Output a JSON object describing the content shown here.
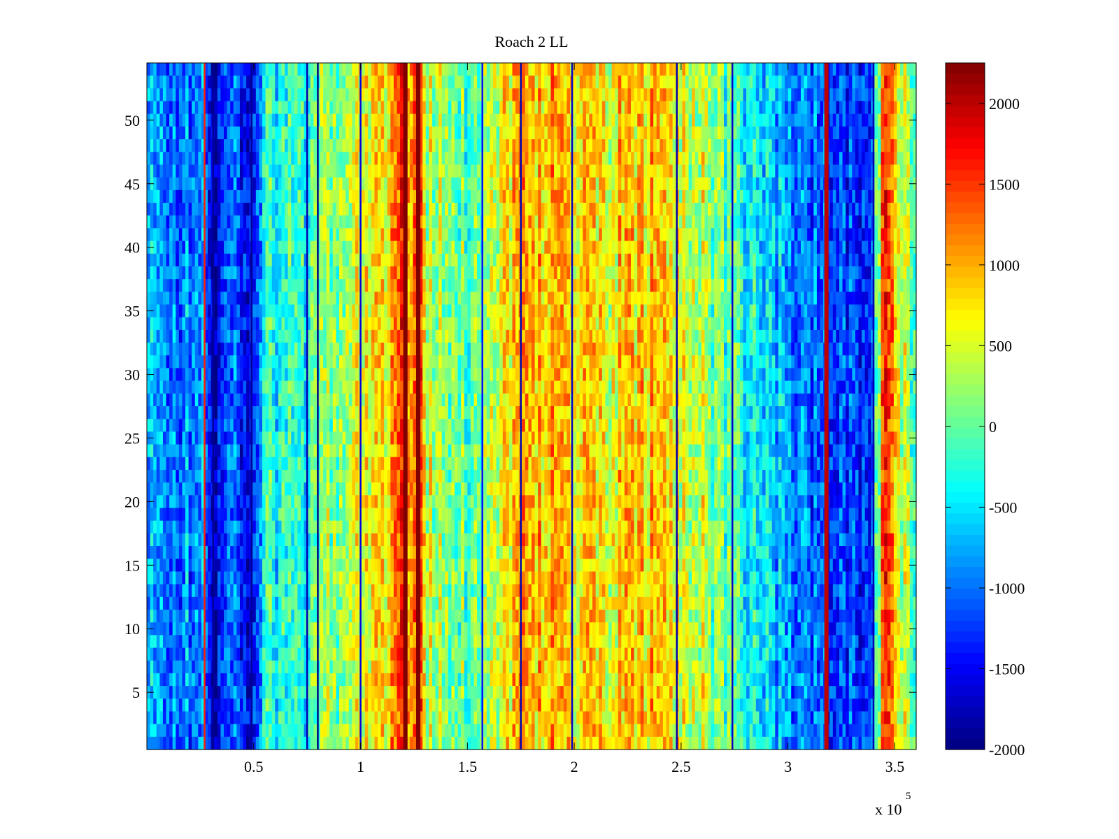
{
  "chart_data": {
    "type": "heatmap",
    "title": "Roach 2 LL",
    "xlabel": "",
    "ylabel": "",
    "x_exponent_label": "x 10",
    "x_exponent_sup": "5",
    "xlim": [
      0,
      3.6
    ],
    "ylim": [
      0.5,
      54.5
    ],
    "x_ticks": [
      0.5,
      1,
      1.5,
      2,
      2.5,
      3,
      3.5
    ],
    "x_tick_labels": [
      "0.5",
      "1",
      "1.5",
      "2",
      "2.5",
      "3",
      "3.5"
    ],
    "y_ticks": [
      5,
      10,
      15,
      20,
      25,
      30,
      35,
      40,
      45,
      50
    ],
    "y_tick_labels": [
      "5",
      "10",
      "15",
      "20",
      "25",
      "30",
      "35",
      "40",
      "45",
      "50"
    ],
    "rows": 54,
    "colorbar": {
      "colormap": "jet",
      "clim": [
        -2000,
        2250
      ],
      "ticks": [
        2000,
        1500,
        1000,
        500,
        0,
        -500,
        -1000,
        -1500,
        -2000
      ],
      "tick_labels": [
        "2000",
        "1500",
        "1000",
        "500",
        "0",
        "-500",
        "-1000",
        "-1500",
        "-2000"
      ]
    },
    "column_profile": {
      "x": [
        0.0,
        0.1,
        0.2,
        0.28,
        0.3,
        0.33,
        0.38,
        0.45,
        0.48,
        0.5,
        0.55,
        0.65,
        0.75,
        0.8,
        0.85,
        0.95,
        1.0,
        1.05,
        1.15,
        1.2,
        1.23,
        1.27,
        1.3,
        1.4,
        1.5,
        1.58,
        1.65,
        1.75,
        1.85,
        1.95,
        2.05,
        2.15,
        2.25,
        2.35,
        2.45,
        2.5,
        2.6,
        2.7,
        2.8,
        2.9,
        3.0,
        3.1,
        3.18,
        3.25,
        3.3,
        3.35,
        3.4,
        3.45,
        3.48,
        3.52,
        3.6
      ],
      "values": [
        -800,
        -900,
        -950,
        -1000,
        -1600,
        -1550,
        -1100,
        -1300,
        -1500,
        -1100,
        -400,
        -300,
        -300,
        -100,
        200,
        400,
        600,
        700,
        900,
        2100,
        900,
        2000,
        500,
        100,
        0,
        200,
        600,
        900,
        1000,
        900,
        700,
        600,
        800,
        850,
        750,
        600,
        400,
        -100,
        -400,
        -600,
        -800,
        -1000,
        -1200,
        -1300,
        -1300,
        -1200,
        -900,
        1500,
        1200,
        400,
        100
      ]
    },
    "dark_stripes": [
      {
        "x": 0.27,
        "value": 1600
      },
      {
        "x": 0.31,
        "value": -1900
      },
      {
        "x": 0.49,
        "value": -1900
      },
      {
        "x": 0.75,
        "value": -1800
      },
      {
        "x": 0.8,
        "value": -2000
      },
      {
        "x": 1.0,
        "value": -1600
      },
      {
        "x": 1.21,
        "value": 2250
      },
      {
        "x": 1.27,
        "value": 2250
      },
      {
        "x": 1.57,
        "value": -1400
      },
      {
        "x": 1.75,
        "value": -1800
      },
      {
        "x": 1.99,
        "value": -1700
      },
      {
        "x": 2.48,
        "value": -1800
      },
      {
        "x": 2.74,
        "value": -1700
      },
      {
        "x": 3.18,
        "value": 2000
      },
      {
        "x": 3.4,
        "value": -1800
      }
    ]
  }
}
